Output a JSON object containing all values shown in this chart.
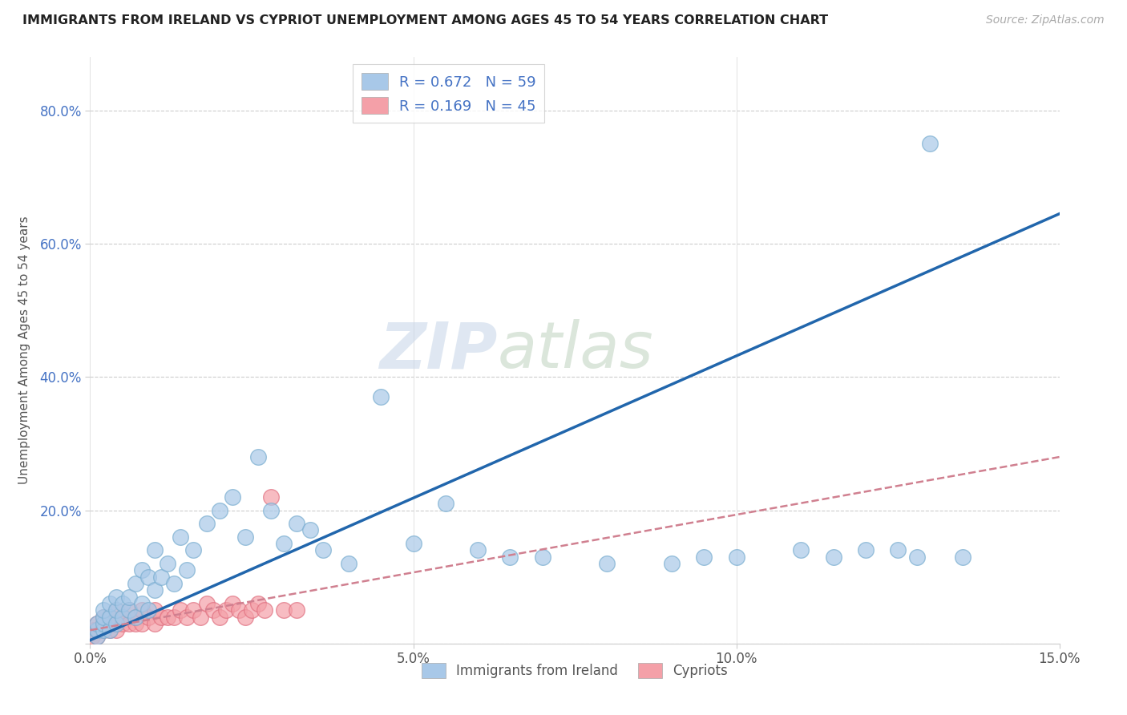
{
  "title": "IMMIGRANTS FROM IRELAND VS CYPRIOT UNEMPLOYMENT AMONG AGES 45 TO 54 YEARS CORRELATION CHART",
  "source": "Source: ZipAtlas.com",
  "xlabel": "",
  "ylabel": "Unemployment Among Ages 45 to 54 years",
  "xlim": [
    0,
    0.15
  ],
  "ylim": [
    0,
    0.88
  ],
  "x_ticks": [
    0.0,
    0.05,
    0.1,
    0.15
  ],
  "x_tick_labels": [
    "0.0%",
    "5.0%",
    "10.0%",
    "15.0%"
  ],
  "y_ticks": [
    0.0,
    0.2,
    0.4,
    0.6,
    0.8
  ],
  "y_tick_labels": [
    "",
    "20.0%",
    "40.0%",
    "60.0%",
    "80.0%"
  ],
  "blue_R": 0.672,
  "blue_N": 59,
  "pink_R": 0.169,
  "pink_N": 45,
  "blue_color": "#a8c8e8",
  "pink_color": "#f4a0a8",
  "blue_edge_color": "#7aaed0",
  "pink_edge_color": "#e07080",
  "blue_line_color": "#2166ac",
  "pink_line_color": "#d08090",
  "watermark_color": "#d0dff0",
  "blue_scatter_x": [
    0.001,
    0.001,
    0.001,
    0.002,
    0.002,
    0.002,
    0.002,
    0.003,
    0.003,
    0.003,
    0.004,
    0.004,
    0.004,
    0.005,
    0.005,
    0.006,
    0.006,
    0.007,
    0.007,
    0.008,
    0.008,
    0.009,
    0.009,
    0.01,
    0.01,
    0.011,
    0.012,
    0.013,
    0.014,
    0.015,
    0.016,
    0.018,
    0.02,
    0.022,
    0.024,
    0.026,
    0.028,
    0.03,
    0.032,
    0.034,
    0.036,
    0.04,
    0.045,
    0.05,
    0.055,
    0.06,
    0.065,
    0.07,
    0.08,
    0.09,
    0.095,
    0.1,
    0.11,
    0.115,
    0.12,
    0.125,
    0.128,
    0.13,
    0.135
  ],
  "blue_scatter_y": [
    0.01,
    0.02,
    0.03,
    0.02,
    0.03,
    0.04,
    0.05,
    0.02,
    0.04,
    0.06,
    0.03,
    0.05,
    0.07,
    0.04,
    0.06,
    0.05,
    0.07,
    0.04,
    0.09,
    0.06,
    0.11,
    0.05,
    0.1,
    0.08,
    0.14,
    0.1,
    0.12,
    0.09,
    0.16,
    0.11,
    0.14,
    0.18,
    0.2,
    0.22,
    0.16,
    0.28,
    0.2,
    0.15,
    0.18,
    0.17,
    0.14,
    0.12,
    0.37,
    0.15,
    0.21,
    0.14,
    0.13,
    0.13,
    0.12,
    0.12,
    0.13,
    0.13,
    0.14,
    0.13,
    0.14,
    0.14,
    0.13,
    0.75,
    0.13
  ],
  "pink_scatter_x": [
    0.0003,
    0.0005,
    0.001,
    0.001,
    0.001,
    0.002,
    0.002,
    0.002,
    0.003,
    0.003,
    0.003,
    0.004,
    0.004,
    0.004,
    0.005,
    0.005,
    0.006,
    0.006,
    0.007,
    0.007,
    0.008,
    0.008,
    0.009,
    0.01,
    0.01,
    0.011,
    0.012,
    0.013,
    0.014,
    0.015,
    0.016,
    0.017,
    0.018,
    0.019,
    0.02,
    0.021,
    0.022,
    0.023,
    0.024,
    0.025,
    0.026,
    0.027,
    0.028,
    0.03,
    0.032
  ],
  "pink_scatter_y": [
    0.01,
    0.02,
    0.01,
    0.02,
    0.03,
    0.02,
    0.03,
    0.04,
    0.02,
    0.03,
    0.04,
    0.02,
    0.03,
    0.05,
    0.03,
    0.04,
    0.03,
    0.05,
    0.03,
    0.04,
    0.03,
    0.05,
    0.04,
    0.03,
    0.05,
    0.04,
    0.04,
    0.04,
    0.05,
    0.04,
    0.05,
    0.04,
    0.06,
    0.05,
    0.04,
    0.05,
    0.06,
    0.05,
    0.04,
    0.05,
    0.06,
    0.05,
    0.22,
    0.05,
    0.05
  ],
  "blue_line_x0": 0.0,
  "blue_line_y0": 0.005,
  "blue_line_x1": 0.15,
  "blue_line_y1": 0.645,
  "pink_line_x0": 0.0,
  "pink_line_y0": 0.02,
  "pink_line_x1": 0.15,
  "pink_line_y1": 0.28
}
